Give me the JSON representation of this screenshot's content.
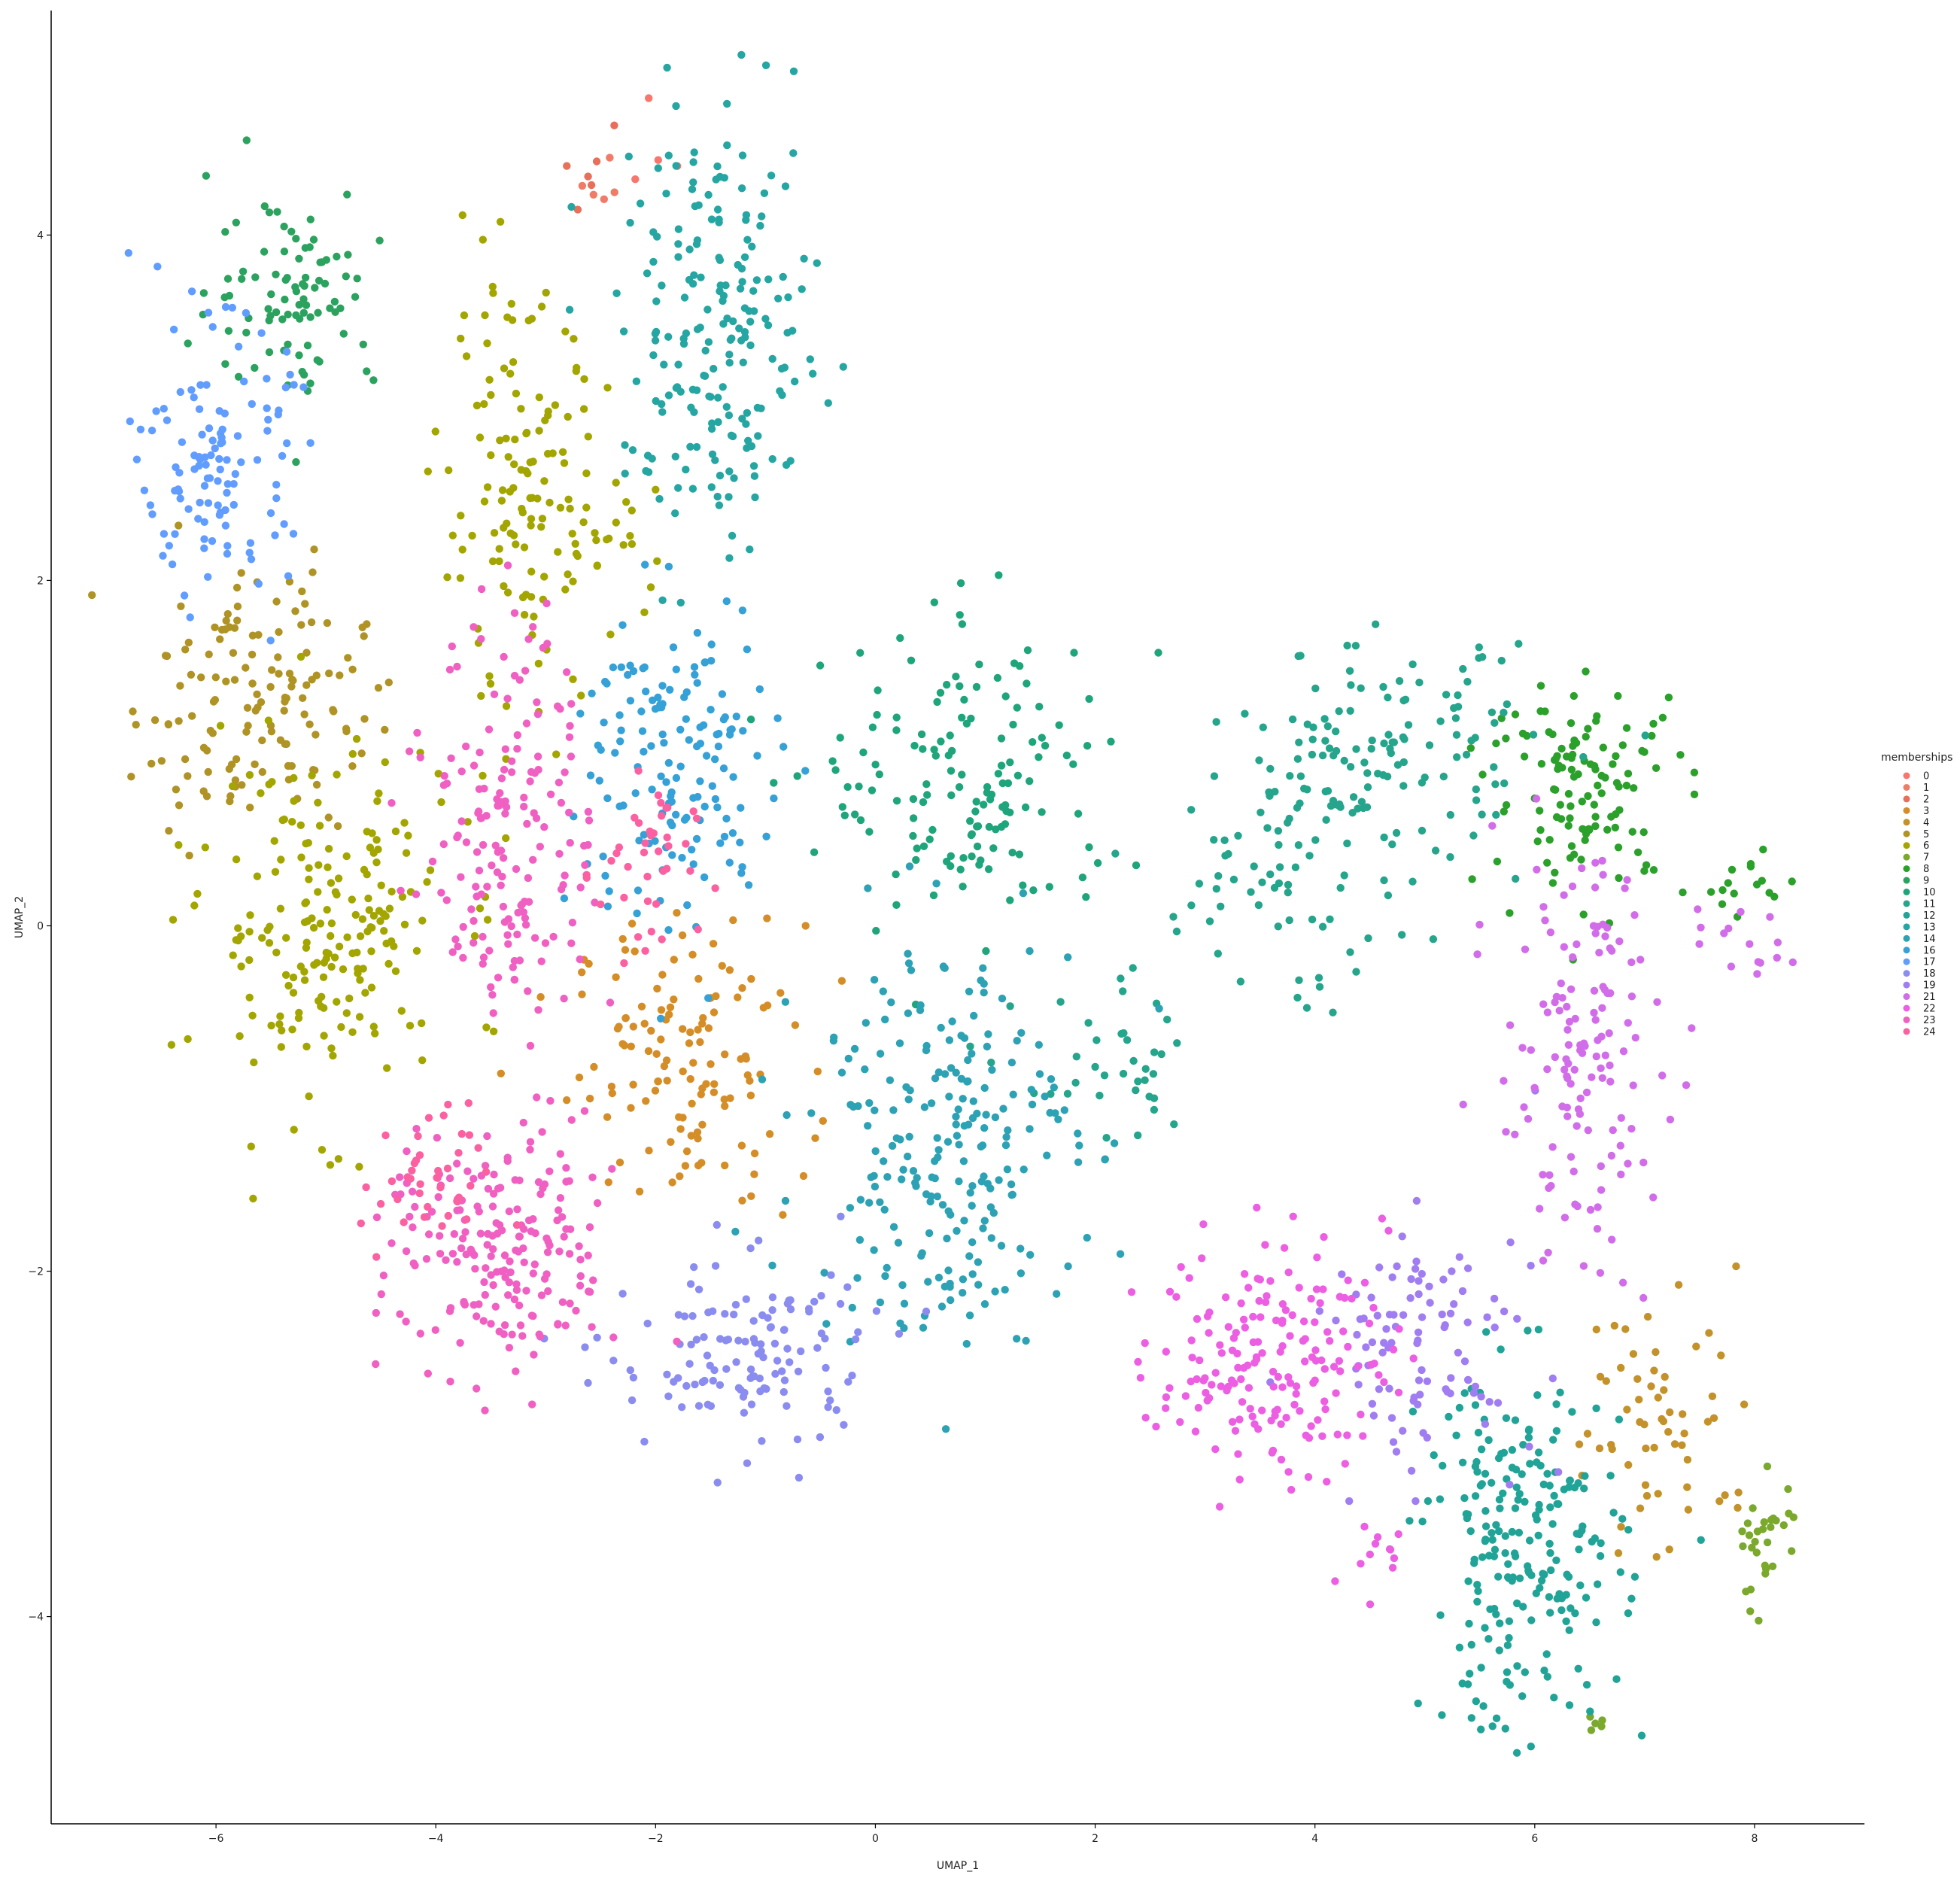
{
  "chart_data": {
    "type": "scatter",
    "title": "",
    "xlabel": "UMAP_1",
    "ylabel": "UMAP_2",
    "xlim": [
      -7.5,
      9.0
    ],
    "ylim": [
      -5.2,
      5.3
    ],
    "xticks": [
      -6,
      -4,
      -2,
      0,
      2,
      4,
      6,
      8
    ],
    "yticks": [
      -4,
      -2,
      0,
      2,
      4
    ],
    "grid": false,
    "legend": {
      "title": "memberships",
      "placement": "right"
    },
    "series": [
      {
        "name": "0",
        "color": "#F8766D",
        "clusters": [
          [
            -1.9,
            4.55,
            0.3,
            0.2,
            4
          ]
        ]
      },
      {
        "name": "1",
        "color": "#F07C68",
        "clusters": [
          [
            -2.5,
            4.2,
            0.3,
            0.2,
            5
          ]
        ]
      },
      {
        "name": "2",
        "color": "#E7705B",
        "clusters": [
          [
            -2.6,
            4.3,
            0.3,
            0.15,
            6
          ]
        ]
      },
      {
        "name": "3",
        "color": "#D58E27",
        "clusters": [
          [
            -1.7,
            -0.8,
            0.7,
            0.55,
            130
          ]
        ]
      },
      {
        "name": "4",
        "color": "#C4922B",
        "clusters": [
          [
            7.2,
            -2.8,
            0.6,
            0.55,
            60
          ]
        ]
      },
      {
        "name": "5",
        "color": "#B09325",
        "clusters": [
          [
            -5.7,
            1.3,
            0.7,
            0.5,
            140
          ]
        ]
      },
      {
        "name": "6",
        "color": "#A3A500",
        "clusters": [
          [
            -5.0,
            0.0,
            0.75,
            0.7,
            200
          ],
          [
            -3.2,
            2.4,
            0.5,
            0.8,
            140
          ],
          [
            -2.3,
            2.3,
            0.25,
            0.25,
            12
          ]
        ]
      },
      {
        "name": "7",
        "color": "#7AA92D",
        "clusters": [
          [
            8.1,
            -3.6,
            0.2,
            0.3,
            30
          ],
          [
            6.55,
            -4.6,
            0.1,
            0.1,
            5
          ]
        ]
      },
      {
        "name": "8",
        "color": "#2BA02B",
        "clusters": [
          [
            6.5,
            0.8,
            0.6,
            0.4,
            120
          ],
          [
            7.9,
            0.25,
            0.35,
            0.15,
            15
          ]
        ]
      },
      {
        "name": "9",
        "color": "#2CA25F",
        "clusters": [
          [
            -5.3,
            3.7,
            0.5,
            0.4,
            90
          ]
        ]
      },
      {
        "name": "10",
        "color": "#1FA57B",
        "clusters": [
          [
            0.9,
            0.8,
            0.9,
            0.6,
            150
          ]
        ]
      },
      {
        "name": "11",
        "color": "#25A58C",
        "clusters": [
          [
            4.6,
            1.0,
            0.9,
            0.4,
            130
          ],
          [
            3.7,
            0.2,
            0.8,
            0.45,
            60
          ],
          [
            2.2,
            -0.9,
            0.6,
            0.35,
            40
          ]
        ]
      },
      {
        "name": "12",
        "color": "#21A497",
        "clusters": [
          [
            5.9,
            -3.6,
            0.6,
            0.7,
            220
          ]
        ]
      },
      {
        "name": "13",
        "color": "#26A6A3",
        "clusters": [
          [
            -1.4,
            3.4,
            0.6,
            0.85,
            200
          ]
        ]
      },
      {
        "name": "14",
        "color": "#2DA2B5",
        "clusters": [
          [
            0.6,
            -1.2,
            0.8,
            0.8,
            230
          ]
        ]
      },
      {
        "name": "16",
        "color": "#35A1D7",
        "clusters": [
          [
            -1.8,
            0.9,
            0.6,
            0.7,
            150
          ]
        ]
      },
      {
        "name": "17",
        "color": "#619CFF",
        "clusters": [
          [
            -6.0,
            2.7,
            0.45,
            0.5,
            120
          ]
        ]
      },
      {
        "name": "18",
        "color": "#8B8CF0",
        "clusters": [
          [
            -1.2,
            -2.5,
            0.8,
            0.4,
            130
          ]
        ]
      },
      {
        "name": "19",
        "color": "#A07EF2",
        "clusters": [
          [
            5.0,
            -2.4,
            0.7,
            0.45,
            100
          ]
        ]
      },
      {
        "name": "21",
        "color": "#D26DEA",
        "clusters": [
          [
            6.4,
            -0.8,
            0.5,
            0.8,
            140
          ],
          [
            7.9,
            -0.1,
            0.3,
            0.2,
            15
          ]
        ]
      },
      {
        "name": "22",
        "color": "#EC5FE2",
        "clusters": [
          [
            3.6,
            -2.5,
            0.7,
            0.45,
            180
          ],
          [
            4.5,
            -3.6,
            0.2,
            0.2,
            12
          ]
        ]
      },
      {
        "name": "23",
        "color": "#F060C2",
        "clusters": [
          [
            -3.3,
            0.6,
            0.5,
            0.8,
            170
          ],
          [
            -3.4,
            -1.9,
            0.7,
            0.5,
            200
          ]
        ]
      },
      {
        "name": "24",
        "color": "#FB61A1",
        "clusters": [
          [
            -2.1,
            0.3,
            0.3,
            0.4,
            40
          ],
          [
            -4.1,
            -1.5,
            0.4,
            0.3,
            40
          ]
        ]
      }
    ]
  }
}
